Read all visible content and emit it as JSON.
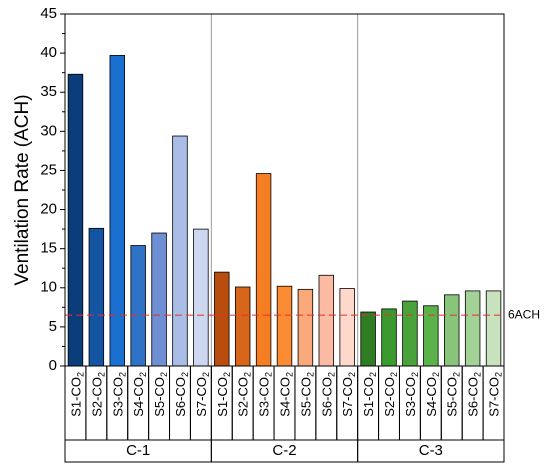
{
  "chart_data": {
    "type": "bar",
    "ylabel": "Ventilation Rate (ACH)",
    "ylim": [
      0,
      45
    ],
    "yticks": [
      0,
      5,
      10,
      15,
      20,
      25,
      30,
      35,
      40,
      45
    ],
    "grid": false,
    "legend": "none",
    "groups": [
      {
        "name": "C-1",
        "categories": [
          "S1-CO2",
          "S2-CO2",
          "S3-CO2",
          "S4-CO2",
          "S5-CO2",
          "S6-CO2",
          "S7-CO2"
        ],
        "values": [
          37.3,
          17.6,
          39.7,
          15.4,
          17.0,
          29.4,
          17.5
        ],
        "colors": [
          "#0a3d7a",
          "#1355a3",
          "#1a6fcf",
          "#2f73c6",
          "#6e8fd4",
          "#a9bde6",
          "#cdd7f0"
        ]
      },
      {
        "name": "C-2",
        "categories": [
          "S1-CO2",
          "S2-CO2",
          "S3-CO2",
          "S4-CO2",
          "S5-CO2",
          "S6-CO2",
          "S7-CO2"
        ],
        "values": [
          12.0,
          10.1,
          24.6,
          10.2,
          9.8,
          11.6,
          9.9
        ],
        "colors": [
          "#b84d0d",
          "#d8661a",
          "#f57d22",
          "#fb8c33",
          "#fba97b",
          "#fcbba2",
          "#fdd8cb"
        ]
      },
      {
        "name": "C-3",
        "categories": [
          "S1-CO2",
          "S2-CO2",
          "S3-CO2",
          "S4-CO2",
          "S5-CO2",
          "S6-CO2",
          "S7-CO2"
        ],
        "values": [
          6.9,
          7.3,
          8.3,
          7.7,
          9.1,
          9.6,
          9.6
        ],
        "colors": [
          "#2e7d23",
          "#3a9a2e",
          "#4aa33a",
          "#5bb24a",
          "#88c57a",
          "#a3d296",
          "#c7e2bd"
        ]
      }
    ],
    "reference_line": {
      "value": 6.5,
      "label": "6ACH",
      "color": "#e53030"
    }
  }
}
